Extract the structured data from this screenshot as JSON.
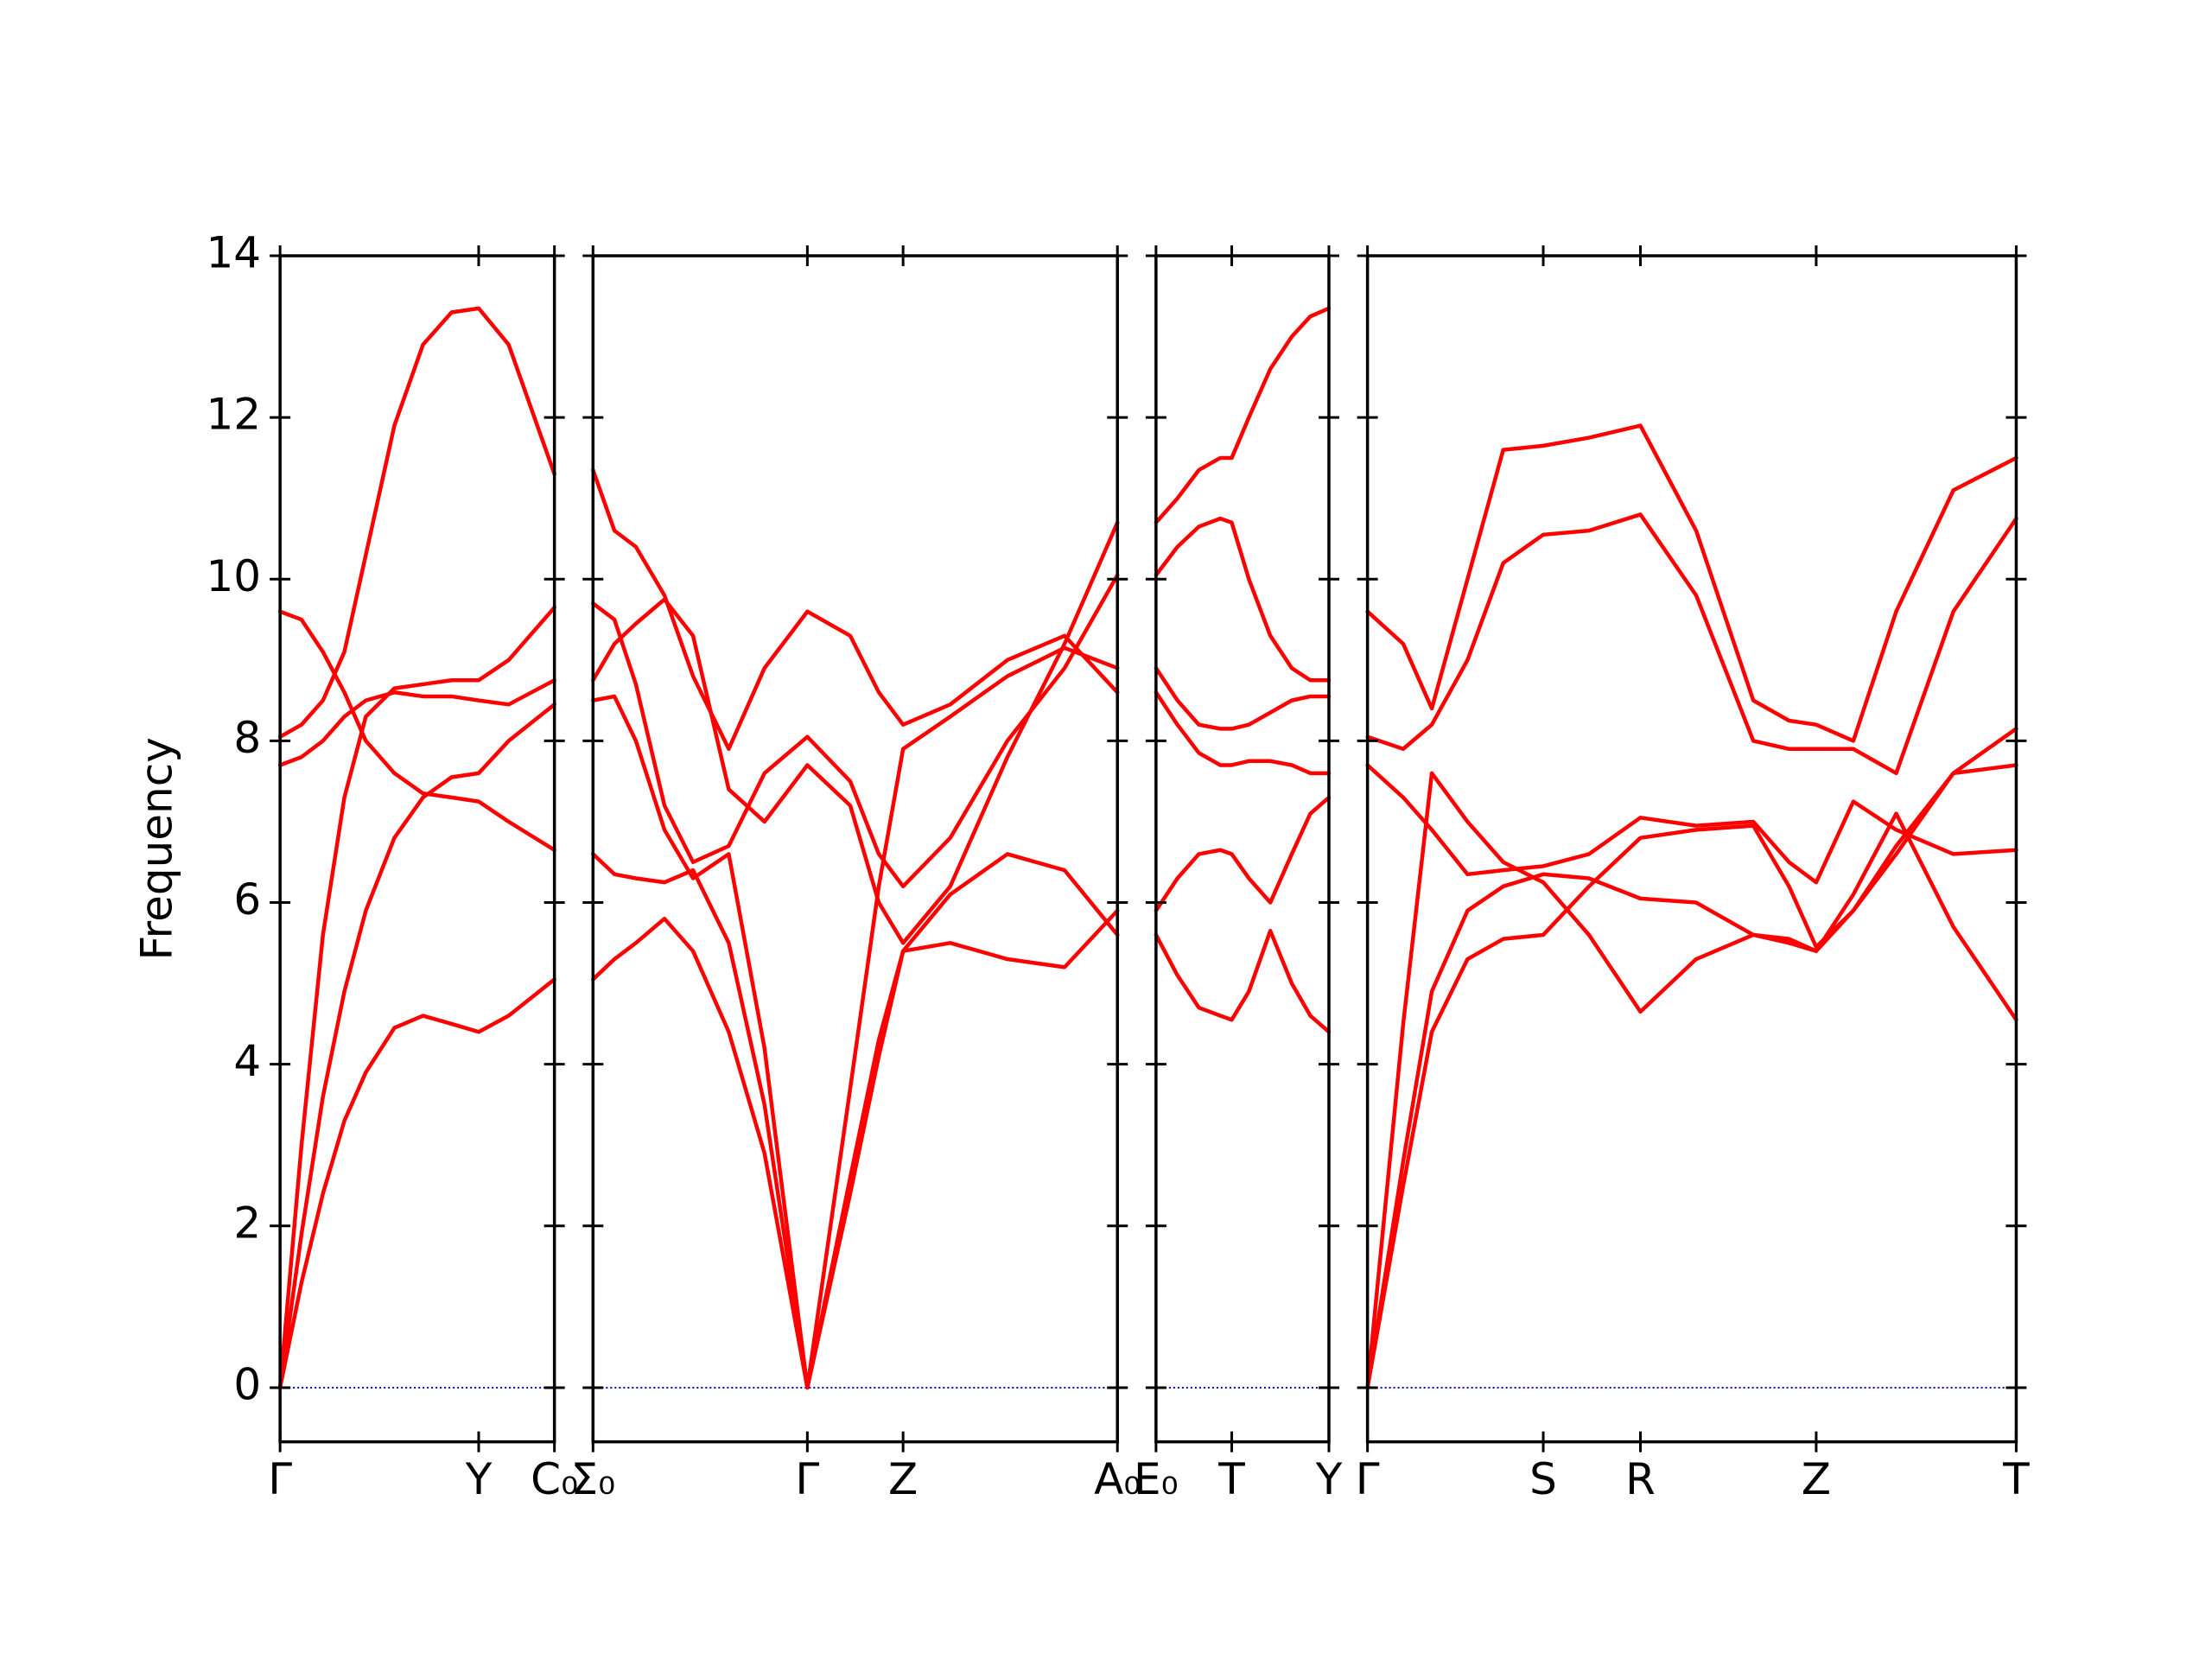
{
  "chart_data": [
    {
      "type": "line",
      "ylabel": "Frequency",
      "show_ytick_labels": true,
      "x": [
        0,
        0.15,
        0.3,
        0.45,
        0.6,
        0.8,
        1.0,
        1.2,
        1.39,
        1.6,
        1.92
      ],
      "xlim": [
        0,
        1.92
      ],
      "xticks": [
        {
          "value": 0,
          "label": "Γ"
        },
        {
          "value": 1.39,
          "label": "Y"
        },
        {
          "value": 1.92,
          "label": "C₀"
        }
      ],
      "ylim": [
        -0.67,
        14
      ],
      "yticks": [
        0,
        2,
        4,
        6,
        8,
        10,
        12,
        14
      ],
      "hline": {
        "value": 0,
        "color": "#0000ff",
        "style": "dotted"
      },
      "series": [
        {
          "color": "#ff0000",
          "values": [
            8.05,
            8.2,
            8.5,
            9.1,
            10.3,
            11.9,
            12.9,
            13.3,
            13.35,
            12.9,
            11.3
          ]
        },
        {
          "color": "#ff0000",
          "values": [
            9.6,
            9.5,
            9.1,
            8.6,
            8.0,
            7.6,
            7.35,
            7.3,
            7.25,
            7.0,
            6.65
          ]
        },
        {
          "color": "#ff0000",
          "values": [
            7.7,
            7.8,
            8.0,
            8.3,
            8.5,
            8.6,
            8.55,
            8.55,
            8.5,
            8.45,
            8.75
          ]
        },
        {
          "color": "#ff0000",
          "values": [
            0,
            3.0,
            5.6,
            7.3,
            8.3,
            8.65,
            8.7,
            8.75,
            8.75,
            9.0,
            9.65
          ]
        },
        {
          "color": "#ff0000",
          "values": [
            0,
            1.9,
            3.6,
            4.9,
            5.9,
            6.8,
            7.3,
            7.55,
            7.6,
            8.0,
            8.45
          ]
        },
        {
          "color": "#ff0000",
          "values": [
            0,
            1.3,
            2.4,
            3.3,
            3.9,
            4.45,
            4.6,
            4.5,
            4.4,
            4.6,
            5.05
          ]
        }
      ]
    },
    {
      "type": "line",
      "show_ytick_labels": false,
      "x": [
        0,
        0.15,
        0.3,
        0.5,
        0.7,
        0.95,
        1.2,
        1.5,
        1.8,
        2.0,
        2.17,
        2.5,
        2.9,
        3.3,
        3.67
      ],
      "xlim": [
        0,
        3.67
      ],
      "xticks": [
        {
          "value": 0,
          "label": "Σ₀"
        },
        {
          "value": 1.5,
          "label": "Γ"
        },
        {
          "value": 2.17,
          "label": "Z"
        },
        {
          "value": 3.67,
          "label": "A₀"
        }
      ],
      "ylim": [
        -0.67,
        14
      ],
      "yticks": [
        0,
        2,
        4,
        6,
        8,
        10,
        12,
        14
      ],
      "hline": {
        "value": 0,
        "color": "#0000ff",
        "style": "dotted"
      },
      "series": [
        {
          "color": "#ff0000",
          "values": [
            11.35,
            10.6,
            10.4,
            9.8,
            8.8,
            7.9,
            8.9,
            9.6,
            9.3,
            8.6,
            8.2,
            8.45,
            9.0,
            9.3,
            8.6
          ]
        },
        {
          "color": "#ff0000",
          "values": [
            9.7,
            9.5,
            8.7,
            7.2,
            6.5,
            6.7,
            7.6,
            8.05,
            7.5,
            6.6,
            6.2,
            6.8,
            8.0,
            8.9,
            10.05
          ]
        },
        {
          "color": "#ff0000",
          "values": [
            8.75,
            9.2,
            9.45,
            9.75,
            9.3,
            7.4,
            7.0,
            7.7,
            7.2,
            6.0,
            5.5,
            6.2,
            7.8,
            9.2,
            10.7
          ]
        },
        {
          "color": "#ff0000",
          "values": [
            8.5,
            8.55,
            8.0,
            6.9,
            6.3,
            6.6,
            4.2,
            0,
            3.7,
            6.2,
            7.9,
            8.3,
            8.8,
            9.15,
            8.9
          ]
        },
        {
          "color": "#ff0000",
          "values": [
            6.6,
            6.35,
            6.3,
            6.25,
            6.4,
            5.5,
            3.5,
            0,
            2.6,
            4.3,
            5.4,
            6.1,
            6.6,
            6.4,
            5.6
          ]
        },
        {
          "color": "#ff0000",
          "values": [
            5.05,
            5.3,
            5.5,
            5.8,
            5.4,
            4.4,
            2.9,
            0,
            2.4,
            4.1,
            5.4,
            5.5,
            5.3,
            5.2,
            5.9
          ]
        }
      ]
    },
    {
      "type": "line",
      "show_ytick_labels": false,
      "x": [
        0,
        0.15,
        0.3,
        0.45,
        0.53,
        0.65,
        0.8,
        0.95,
        1.08,
        1.21
      ],
      "xlim": [
        0,
        1.21
      ],
      "xticks": [
        {
          "value": 0,
          "label": "E₀"
        },
        {
          "value": 0.53,
          "label": "T"
        },
        {
          "value": 1.21,
          "label": "Y"
        }
      ],
      "ylim": [
        -0.67,
        14
      ],
      "yticks": [
        0,
        2,
        4,
        6,
        8,
        10,
        12,
        14
      ],
      "hline": {
        "value": 0,
        "color": "#0000ff",
        "style": "dotted"
      },
      "series": [
        {
          "color": "#ff0000",
          "values": [
            10.7,
            11.0,
            11.35,
            11.5,
            11.5,
            12.0,
            12.6,
            13.0,
            13.25,
            13.35
          ]
        },
        {
          "color": "#ff0000",
          "values": [
            10.05,
            10.4,
            10.65,
            10.75,
            10.7,
            10.0,
            9.3,
            8.9,
            8.75,
            8.75
          ]
        },
        {
          "color": "#ff0000",
          "values": [
            8.9,
            8.5,
            8.2,
            8.15,
            8.15,
            8.2,
            8.35,
            8.5,
            8.55,
            8.55
          ]
        },
        {
          "color": "#ff0000",
          "values": [
            8.6,
            8.2,
            7.85,
            7.7,
            7.7,
            7.75,
            7.75,
            7.7,
            7.6,
            7.6
          ]
        },
        {
          "color": "#ff0000",
          "values": [
            5.9,
            6.3,
            6.6,
            6.65,
            6.6,
            6.3,
            6.0,
            6.6,
            7.1,
            7.3
          ]
        },
        {
          "color": "#ff0000",
          "values": [
            5.6,
            5.1,
            4.7,
            4.6,
            4.55,
            4.9,
            5.65,
            5.0,
            4.6,
            4.4
          ]
        }
      ]
    },
    {
      "type": "line",
      "show_ytick_labels": false,
      "x": [
        0,
        0.25,
        0.45,
        0.7,
        0.95,
        1.23,
        1.55,
        1.91,
        2.3,
        2.7,
        2.95,
        3.14,
        3.4,
        3.7,
        4.1,
        4.54
      ],
      "xlim": [
        0,
        4.54
      ],
      "xticks": [
        {
          "value": 0,
          "label": "Γ"
        },
        {
          "value": 1.23,
          "label": "S"
        },
        {
          "value": 1.91,
          "label": "R"
        },
        {
          "value": 3.14,
          "label": "Z"
        },
        {
          "value": 4.54,
          "label": "T"
        }
      ],
      "ylim": [
        -0.67,
        14
      ],
      "yticks": [
        0,
        2,
        4,
        6,
        8,
        10,
        12,
        14
      ],
      "hline": {
        "value": 0,
        "color": "#0000ff",
        "style": "dotted"
      },
      "series": [
        {
          "color": "#ff0000",
          "values": [
            9.6,
            9.2,
            8.4,
            10.0,
            11.6,
            11.65,
            11.75,
            11.9,
            10.6,
            8.5,
            8.25,
            8.2,
            8.0,
            9.6,
            11.1,
            11.5
          ]
        },
        {
          "color": "#ff0000",
          "values": [
            8.05,
            7.9,
            8.2,
            9.0,
            10.2,
            10.55,
            10.6,
            10.8,
            9.8,
            8.0,
            7.9,
            7.9,
            7.9,
            7.6,
            9.6,
            10.75
          ]
        },
        {
          "color": "#ff0000",
          "values": [
            7.7,
            7.3,
            6.9,
            6.35,
            6.4,
            6.45,
            6.6,
            7.05,
            6.95,
            7.0,
            6.5,
            6.25,
            7.25,
            6.9,
            6.6,
            6.65
          ]
        },
        {
          "color": "#ff0000",
          "values": [
            0,
            4.5,
            7.6,
            7.0,
            6.5,
            6.25,
            5.6,
            4.65,
            5.3,
            5.6,
            5.5,
            5.4,
            6.1,
            7.1,
            5.7,
            4.55
          ]
        },
        {
          "color": "#ff0000",
          "values": [
            0,
            2.8,
            4.9,
            5.9,
            6.2,
            6.35,
            6.3,
            6.05,
            6.0,
            5.6,
            5.55,
            5.4,
            5.9,
            6.7,
            7.6,
            8.15
          ]
        },
        {
          "color": "#ff0000",
          "values": [
            0,
            2.5,
            4.4,
            5.3,
            5.55,
            5.6,
            6.2,
            6.8,
            6.9,
            6.95,
            6.2,
            5.45,
            5.9,
            6.6,
            7.6,
            7.7
          ]
        }
      ]
    }
  ]
}
